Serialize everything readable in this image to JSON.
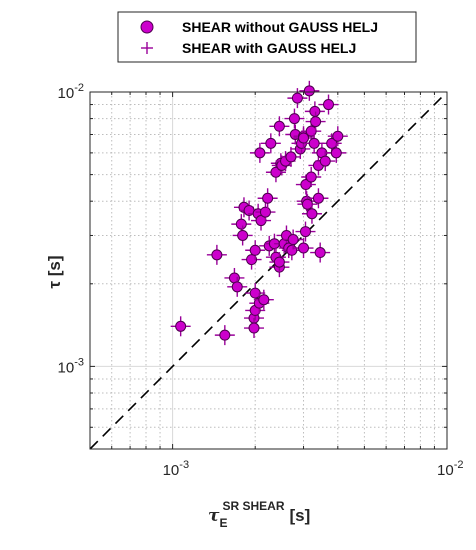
{
  "chart_data": {
    "type": "scatter",
    "xscale": "log",
    "yscale": "log",
    "xlim": [
      0.0005,
      0.01
    ],
    "ylim": [
      0.0005,
      0.01
    ],
    "grid": true,
    "minor_grid": true,
    "legend_position": "top-center",
    "xlabel": {
      "symbol": "τ",
      "sub": "E",
      "sup": "SR SHEAR",
      "unit": "[s]"
    },
    "ylabel": "τ [s]",
    "x_ticks": [
      {
        "base": "10",
        "exp": "-3",
        "value": 0.001
      },
      {
        "base": "10",
        "exp": "-2",
        "value": 0.01
      }
    ],
    "y_ticks": [
      {
        "base": "10",
        "exp": "-3",
        "value": 0.001
      },
      {
        "base": "10",
        "exp": "-2",
        "value": 0.01
      }
    ],
    "reference_line": {
      "style": "dashed",
      "color": "#000000",
      "x": [
        0.0005,
        0.01
      ],
      "y": [
        0.0005,
        0.01
      ]
    },
    "series": [
      {
        "name": "SHEAR without GAUSS HELJ",
        "marker": "circle",
        "color": "#cc00cc"
      },
      {
        "name": "SHEAR with GAUSS HELJ",
        "marker": "plus",
        "color": "#990099"
      }
    ],
    "points": [
      [
        0.00107,
        0.0014
      ],
      [
        0.00145,
        0.00255
      ],
      [
        0.00155,
        0.0013
      ],
      [
        0.00168,
        0.0021
      ],
      [
        0.00172,
        0.00195
      ],
      [
        0.00178,
        0.0033
      ],
      [
        0.0018,
        0.003
      ],
      [
        0.00182,
        0.0038
      ],
      [
        0.0019,
        0.0037
      ],
      [
        0.00194,
        0.00245
      ],
      [
        0.00198,
        0.0015
      ],
      [
        0.00198,
        0.00138
      ],
      [
        0.002,
        0.0016
      ],
      [
        0.002,
        0.00185
      ],
      [
        0.002,
        0.00265
      ],
      [
        0.00205,
        0.0036
      ],
      [
        0.00207,
        0.0017
      ],
      [
        0.0021,
        0.0034
      ],
      [
        0.00208,
        0.006
      ],
      [
        0.00215,
        0.00175
      ],
      [
        0.00218,
        0.00365
      ],
      [
        0.00222,
        0.0041
      ],
      [
        0.00225,
        0.00275
      ],
      [
        0.00228,
        0.0065
      ],
      [
        0.00235,
        0.0028
      ],
      [
        0.00238,
        0.0051
      ],
      [
        0.00238,
        0.0025
      ],
      [
        0.00245,
        0.0023
      ],
      [
        0.00245,
        0.0075
      ],
      [
        0.00248,
        0.0055
      ],
      [
        0.00245,
        0.0024
      ],
      [
        0.0025,
        0.0054
      ],
      [
        0.00255,
        0.0028
      ],
      [
        0.00258,
        0.0056
      ],
      [
        0.0026,
        0.003
      ],
      [
        0.00265,
        0.0027
      ],
      [
        0.0027,
        0.0058
      ],
      [
        0.00272,
        0.00265
      ],
      [
        0.00275,
        0.0029
      ],
      [
        0.00278,
        0.008
      ],
      [
        0.0028,
        0.007
      ],
      [
        0.00285,
        0.0095
      ],
      [
        0.00292,
        0.0062
      ],
      [
        0.00295,
        0.0065
      ],
      [
        0.003,
        0.0069
      ],
      [
        0.003,
        0.0068
      ],
      [
        0.003,
        0.0027
      ],
      [
        0.00305,
        0.0031
      ],
      [
        0.00306,
        0.0046
      ],
      [
        0.00308,
        0.004
      ],
      [
        0.0031,
        0.0039
      ],
      [
        0.00315,
        0.0101
      ],
      [
        0.0032,
        0.0072
      ],
      [
        0.0032,
        0.0049
      ],
      [
        0.00322,
        0.0036
      ],
      [
        0.00328,
        0.0065
      ],
      [
        0.0033,
        0.0085
      ],
      [
        0.00332,
        0.0078
      ],
      [
        0.0034,
        0.0041
      ],
      [
        0.0034,
        0.0054
      ],
      [
        0.00345,
        0.0026
      ],
      [
        0.0035,
        0.006
      ],
      [
        0.0036,
        0.0056
      ],
      [
        0.0037,
        0.009
      ],
      [
        0.0038,
        0.0065
      ],
      [
        0.004,
        0.0069
      ],
      [
        0.00395,
        0.006
      ]
    ]
  }
}
